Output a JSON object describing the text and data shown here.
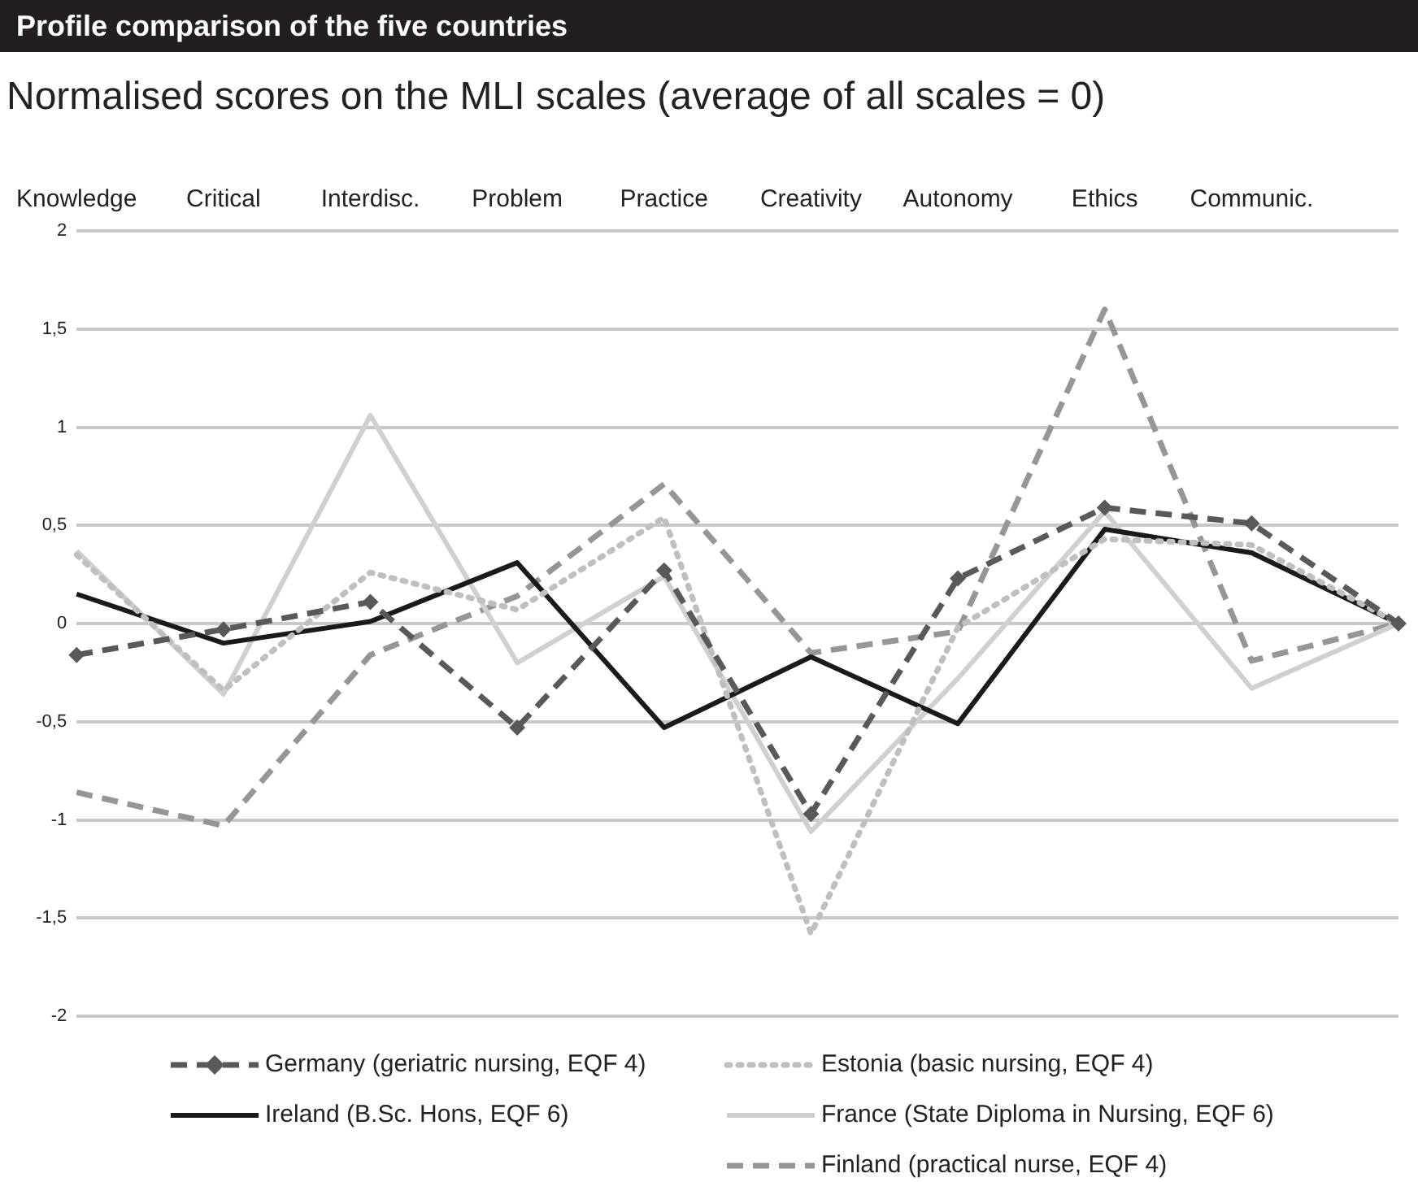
{
  "chart_data": {
    "type": "line",
    "title": "Profile comparison of the five countries",
    "subtitle": "Normalised scores on the MLI scales (average of all scales = 0)",
    "categories": [
      "Knowledge",
      "Critical",
      "Interdisc.",
      "Problem",
      "Practice",
      "Creativity",
      "Autonomy",
      "Ethics",
      "Communic.",
      null
    ],
    "series": [
      {
        "name": "Germany (geriatric nursing, EQF 4)",
        "color": "#595959",
        "line_style": "dashed",
        "marker": "diamond",
        "values": [
          -0.16,
          -0.03,
          0.11,
          -0.53,
          0.27,
          -0.97,
          0.23,
          0.59,
          0.51,
          0
        ]
      },
      {
        "name": "Estonia (basic nursing, EQF 4)",
        "color": "#bfbfbf",
        "line_style": "dotted",
        "marker": "none",
        "values": [
          0.35,
          -0.34,
          0.26,
          0.07,
          0.54,
          -1.58,
          -0.02,
          0.43,
          0.4,
          0
        ]
      },
      {
        "name": "Ireland (B.Sc. Hons, EQF 6)",
        "color": "#1a1a1a",
        "line_style": "solid",
        "marker": "none",
        "values": [
          0.15,
          -0.1,
          0.01,
          0.31,
          -0.53,
          -0.17,
          -0.51,
          0.48,
          0.36,
          0
        ]
      },
      {
        "name": "France (State Diploma in Nursing, EQF 6)",
        "color": "#d0d0d0",
        "line_style": "solid",
        "marker": "none",
        "values": [
          0.37,
          -0.36,
          1.06,
          -0.2,
          0.24,
          -1.06,
          -0.28,
          0.57,
          -0.33,
          0
        ]
      },
      {
        "name": "Finland (practical nurse, EQF 4)",
        "color": "#969696",
        "line_style": "dashed",
        "marker": "none",
        "values": [
          -0.86,
          -1.03,
          -0.16,
          0.14,
          0.71,
          -0.15,
          -0.04,
          1.6,
          -0.19,
          0
        ]
      }
    ],
    "ylim": [
      -2,
      2
    ],
    "yticks": [
      {
        "value": -2,
        "label": "-2"
      },
      {
        "value": -1.5,
        "label": "-1,5"
      },
      {
        "value": -1,
        "label": "-1"
      },
      {
        "value": -0.5,
        "label": "-0,5"
      },
      {
        "value": 0,
        "label": "0"
      },
      {
        "value": 0.5,
        "label": "0,5"
      },
      {
        "value": 1,
        "label": "1"
      },
      {
        "value": 1.5,
        "label": "1,5"
      },
      {
        "value": 2,
        "label": "2"
      }
    ],
    "grid": "y",
    "legend": "bottom"
  }
}
